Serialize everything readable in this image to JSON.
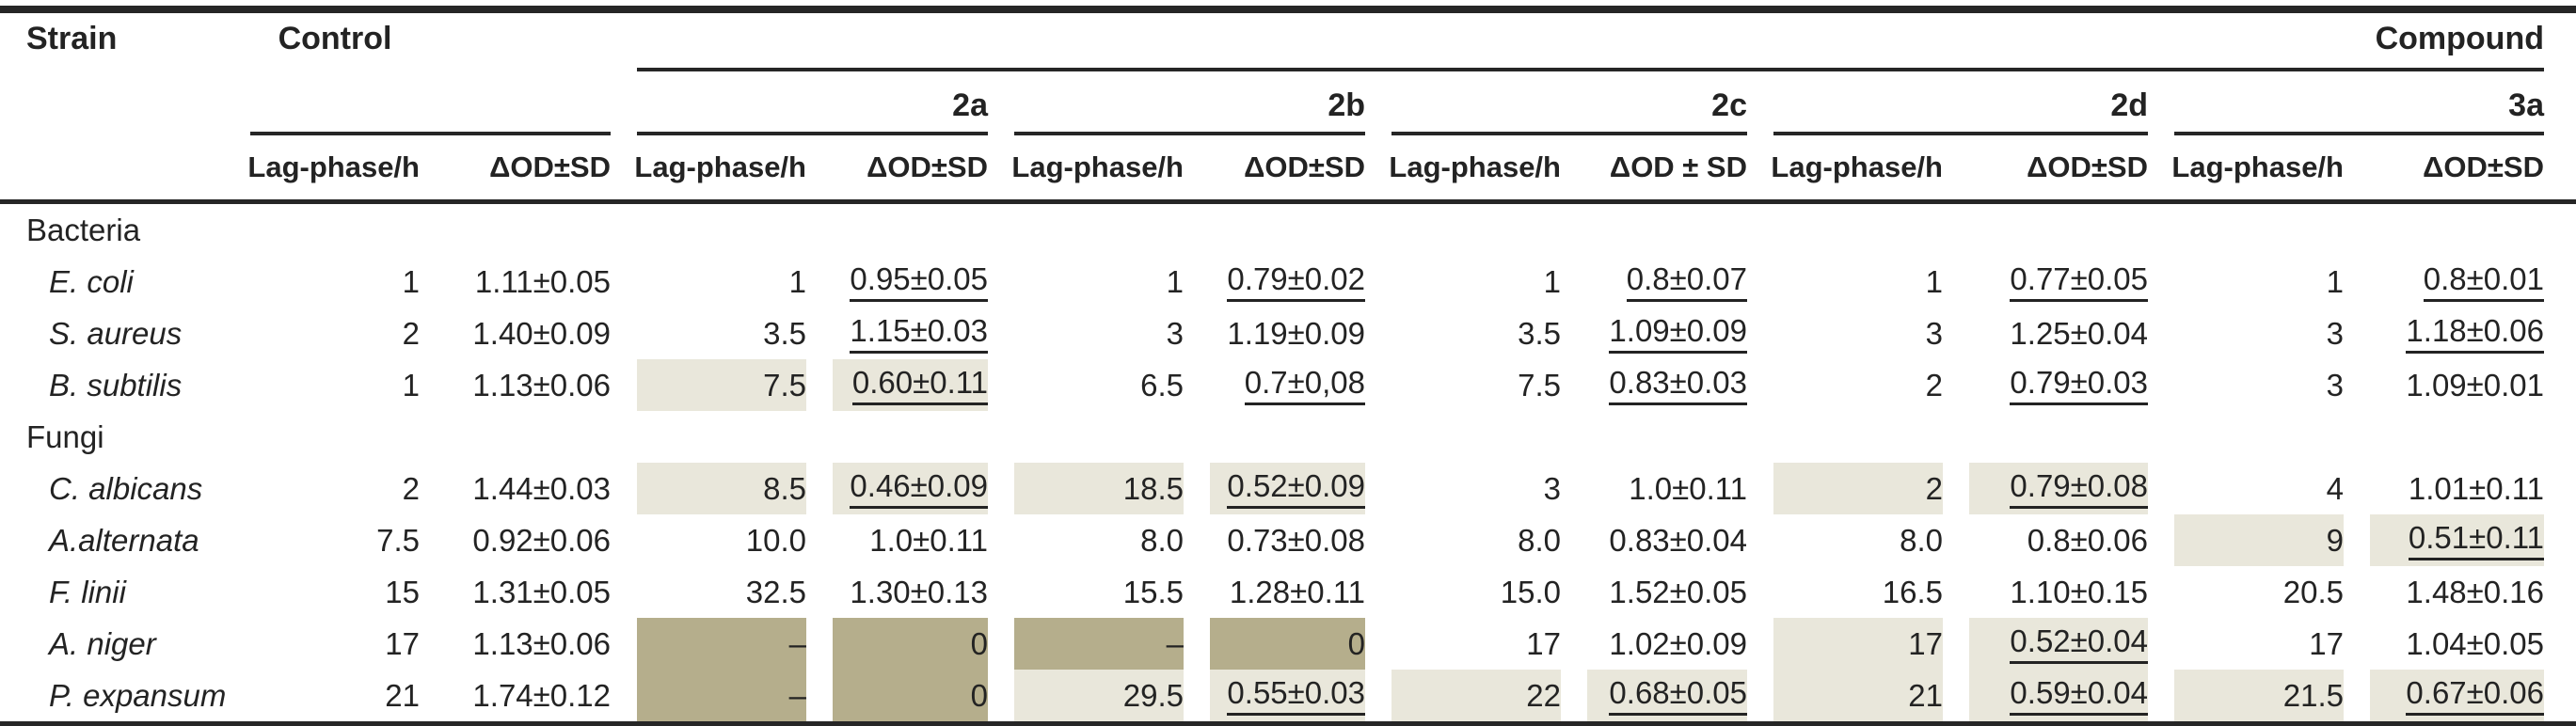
{
  "colors": {
    "text": "#232323",
    "rule": "#262626",
    "highlight_light": "#e9e7db",
    "highlight_dark": "#b5ae8c"
  },
  "table": {
    "header": {
      "strain": "Strain",
      "control": "Control",
      "compound": "Compound"
    },
    "groups": [
      {
        "label": "Control",
        "sub": [
          "Lag-phase/h",
          "ΔOD±SD"
        ]
      },
      {
        "label": "2a",
        "sub": [
          "Lag-phase/h",
          "ΔOD±SD"
        ]
      },
      {
        "label": "2b",
        "sub": [
          "Lag-phase/h",
          "ΔOD±SD"
        ]
      },
      {
        "label": "2c",
        "sub": [
          "Lag-phase/h",
          "ΔOD ± SD"
        ]
      },
      {
        "label": "2d",
        "sub": [
          "Lag-phase/h",
          "ΔOD±SD"
        ]
      },
      {
        "label": "3a",
        "sub": [
          "Lag-phase/h",
          "ΔOD±SD"
        ]
      }
    ],
    "sections": [
      {
        "label": "Bacteria",
        "rows": [
          {
            "strain": "E. coli",
            "cells": [
              {
                "v": "1"
              },
              {
                "v": "1.11±0.05"
              },
              {
                "v": "1"
              },
              {
                "v": "0.95±0.05",
                "u": true
              },
              {
                "v": "1"
              },
              {
                "v": "0.79±0.02",
                "u": true
              },
              {
                "v": "1"
              },
              {
                "v": "0.8±0.07",
                "u": true
              },
              {
                "v": "1"
              },
              {
                "v": "0.77±0.05",
                "u": true
              },
              {
                "v": "1"
              },
              {
                "v": "0.8±0.01",
                "u": true
              }
            ]
          },
          {
            "strain": "S. aureus",
            "cells": [
              {
                "v": "2"
              },
              {
                "v": "1.40±0.09"
              },
              {
                "v": "3.5"
              },
              {
                "v": "1.15±0.03",
                "u": true
              },
              {
                "v": "3"
              },
              {
                "v": "1.19±0.09"
              },
              {
                "v": "3.5"
              },
              {
                "v": "1.09±0.09",
                "u": true
              },
              {
                "v": "3"
              },
              {
                "v": "1.25±0.04"
              },
              {
                "v": "3"
              },
              {
                "v": "1.18±0.06",
                "u": true
              }
            ]
          },
          {
            "strain": "B. subtilis",
            "cells": [
              {
                "v": "1"
              },
              {
                "v": "1.13±0.06"
              },
              {
                "v": "7.5",
                "hl": "light"
              },
              {
                "v": "0.60±0.11",
                "u": true,
                "hl": "light"
              },
              {
                "v": "6.5"
              },
              {
                "v": "0.7±0,08",
                "u": true
              },
              {
                "v": "7.5"
              },
              {
                "v": "0.83±0.03",
                "u": true
              },
              {
                "v": "2"
              },
              {
                "v": "0.79±0.03",
                "u": true
              },
              {
                "v": "3"
              },
              {
                "v": "1.09±0.01"
              }
            ]
          }
        ]
      },
      {
        "label": "Fungi",
        "rows": [
          {
            "strain": "C. albicans",
            "cells": [
              {
                "v": "2"
              },
              {
                "v": "1.44±0.03"
              },
              {
                "v": "8.5",
                "hl": "light"
              },
              {
                "v": "0.46±0.09",
                "u": true,
                "hl": "light"
              },
              {
                "v": "18.5",
                "hl": "light"
              },
              {
                "v": "0.52±0.09",
                "u": true,
                "hl": "light"
              },
              {
                "v": "3"
              },
              {
                "v": "1.0±0.11"
              },
              {
                "v": "2",
                "hl": "light"
              },
              {
                "v": "0.79±0.08",
                "u": true,
                "hl": "light"
              },
              {
                "v": "4"
              },
              {
                "v": "1.01±0.11"
              }
            ]
          },
          {
            "strain": "A.alternata",
            "cells": [
              {
                "v": "7.5"
              },
              {
                "v": "0.92±0.06"
              },
              {
                "v": "10.0"
              },
              {
                "v": "1.0±0.11"
              },
              {
                "v": "8.0"
              },
              {
                "v": "0.73±0.08"
              },
              {
                "v": "8.0"
              },
              {
                "v": "0.83±0.04"
              },
              {
                "v": "8.0"
              },
              {
                "v": "0.8±0.06"
              },
              {
                "v": "9",
                "hl": "light"
              },
              {
                "v": "0.51±0.11",
                "u": true,
                "hl": "light"
              }
            ]
          },
          {
            "strain": "F. linii",
            "cells": [
              {
                "v": "15"
              },
              {
                "v": "1.31±0.05"
              },
              {
                "v": "32.5"
              },
              {
                "v": "1.30±0.13"
              },
              {
                "v": "15.5"
              },
              {
                "v": "1.28±0.11"
              },
              {
                "v": "15.0"
              },
              {
                "v": "1.52±0.05"
              },
              {
                "v": "16.5"
              },
              {
                "v": "1.10±0.15"
              },
              {
                "v": "20.5"
              },
              {
                "v": "1.48±0.16"
              }
            ]
          },
          {
            "strain": "A. niger",
            "cells": [
              {
                "v": "17"
              },
              {
                "v": "1.13±0.06"
              },
              {
                "v": "–",
                "hl": "dark"
              },
              {
                "v": "0",
                "hl": "dark"
              },
              {
                "v": "–",
                "hl": "dark"
              },
              {
                "v": "0",
                "hl": "dark"
              },
              {
                "v": "17"
              },
              {
                "v": "1.02±0.09"
              },
              {
                "v": "17",
                "hl": "light"
              },
              {
                "v": "0.52±0.04",
                "u": true,
                "hl": "light"
              },
              {
                "v": "17"
              },
              {
                "v": "1.04±0.05"
              }
            ]
          },
          {
            "strain": "P. expansum",
            "cells": [
              {
                "v": "21"
              },
              {
                "v": "1.74±0.12"
              },
              {
                "v": "–",
                "hl": "dark"
              },
              {
                "v": "0",
                "hl": "dark"
              },
              {
                "v": "29.5",
                "hl": "light"
              },
              {
                "v": "0.55±0.03",
                "u": true,
                "hl": "light"
              },
              {
                "v": "22",
                "hl": "light"
              },
              {
                "v": "0.68±0.05",
                "u": true,
                "hl": "light"
              },
              {
                "v": "21",
                "hl": "light"
              },
              {
                "v": "0.59±0.04",
                "u": true,
                "hl": "light"
              },
              {
                "v": "21.5",
                "hl": "light"
              },
              {
                "v": "0.67±0.06",
                "u": true,
                "hl": "light"
              }
            ]
          }
        ]
      }
    ]
  }
}
